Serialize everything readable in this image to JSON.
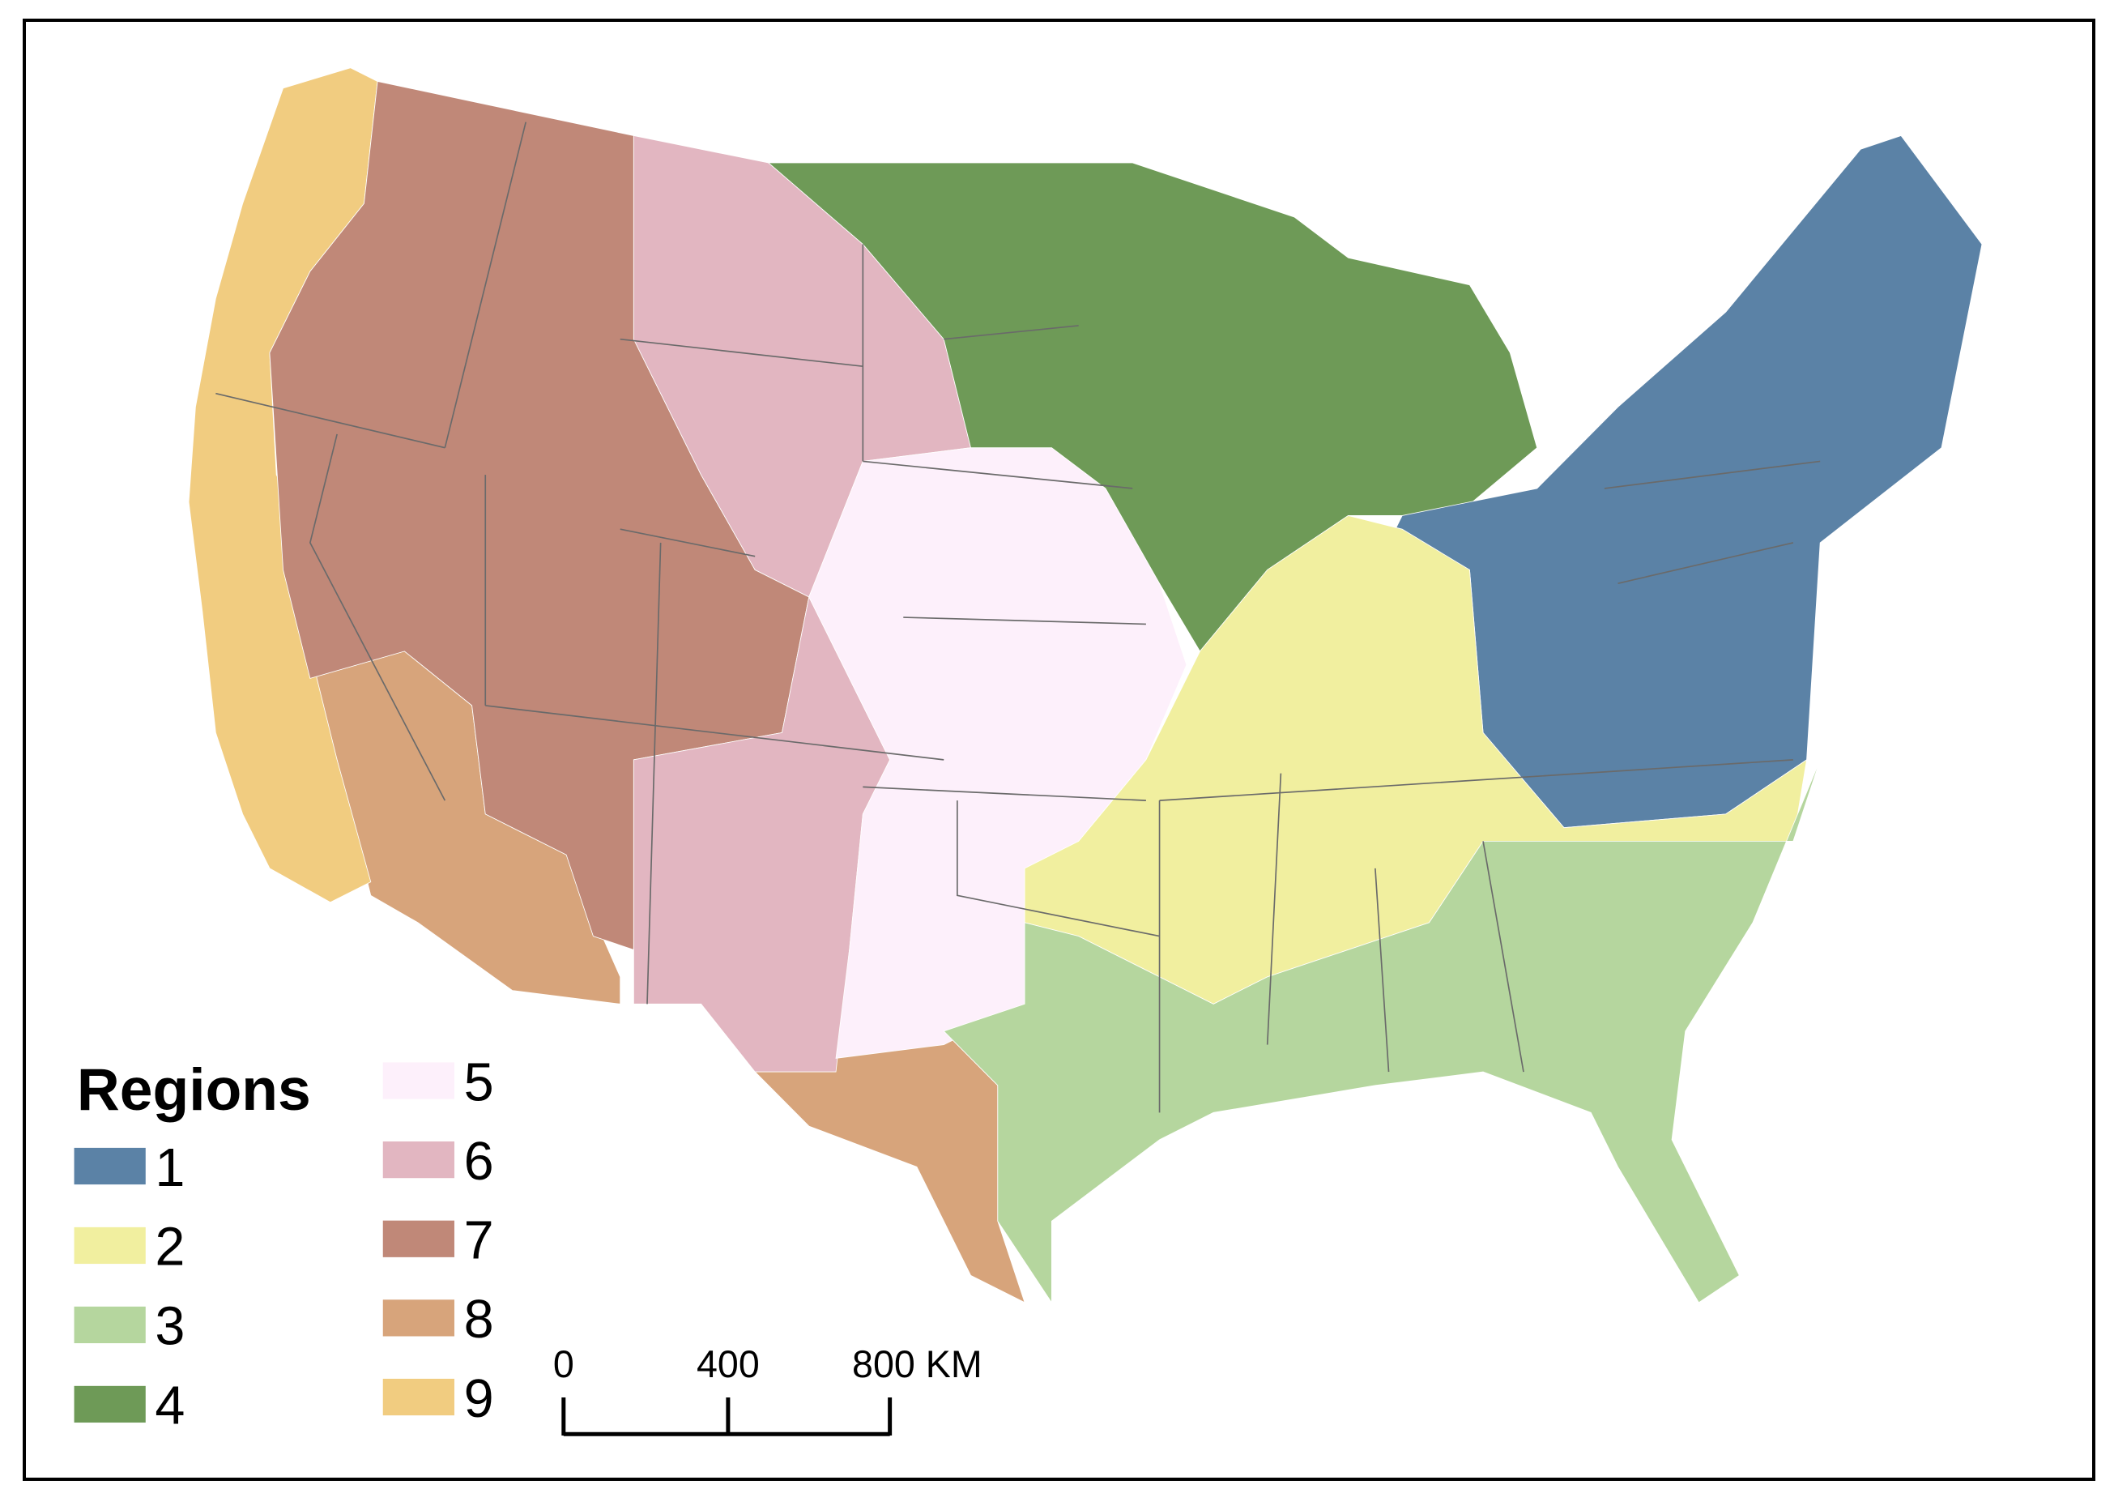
{
  "legend": {
    "title": "Regions",
    "items": [
      {
        "label": "1",
        "color": "#5b82a6"
      },
      {
        "label": "2",
        "color": "#f1ef9f"
      },
      {
        "label": "3",
        "color": "#b5d69e"
      },
      {
        "label": "4",
        "color": "#6e9a57"
      },
      {
        "label": "5",
        "color": "#fdf0fb"
      },
      {
        "label": "6",
        "color": "#e2b6c1"
      },
      {
        "label": "7",
        "color": "#c08878"
      },
      {
        "label": "8",
        "color": "#d7a47b"
      },
      {
        "label": "9",
        "color": "#f1cc80"
      }
    ]
  },
  "scale_bar": {
    "labels": [
      "0",
      "400",
      "800 KM"
    ]
  }
}
